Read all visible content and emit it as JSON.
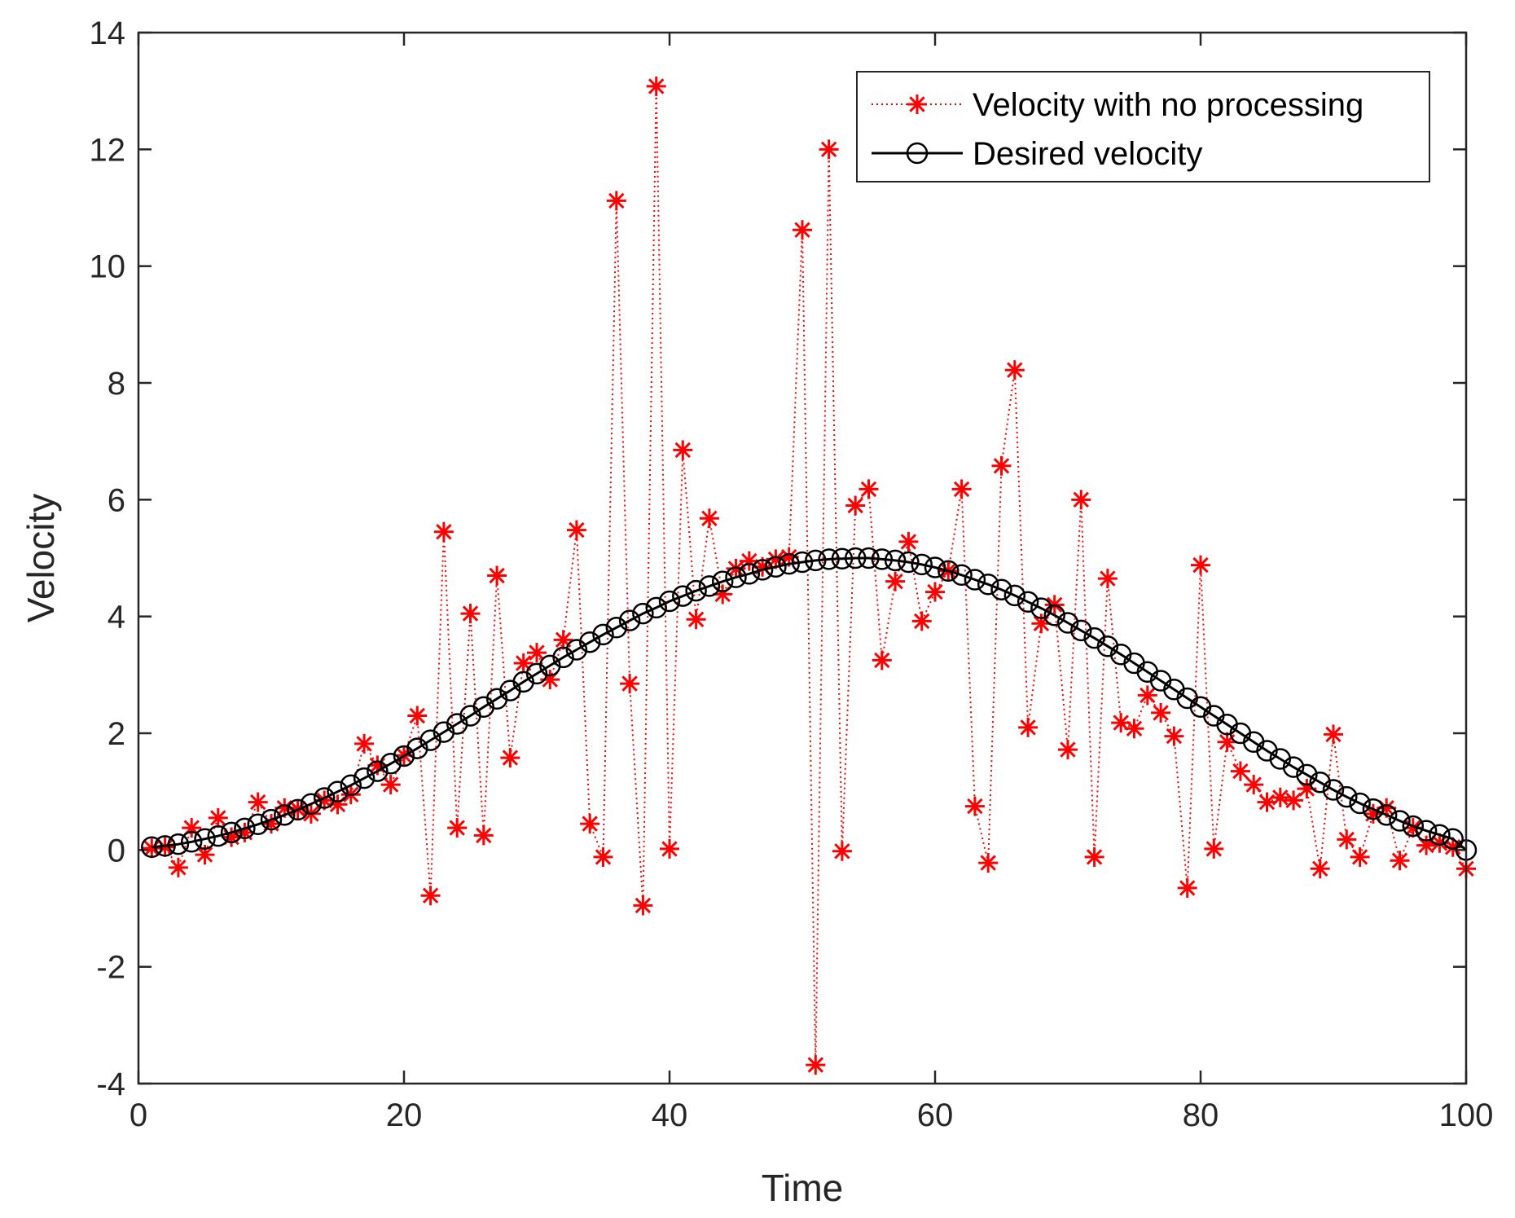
{
  "chart_data": {
    "type": "line",
    "xlabel": "Time",
    "ylabel": "Velocity",
    "xlim": [
      0,
      100
    ],
    "ylim": [
      -4,
      14
    ],
    "xticks": [
      0,
      20,
      40,
      60,
      80,
      100
    ],
    "yticks": [
      -4,
      -2,
      0,
      2,
      4,
      6,
      8,
      10,
      12,
      14
    ],
    "legend_position": "top-right",
    "grid": false,
    "series": [
      {
        "name": "Velocity with no processing",
        "color": "#ff0000",
        "line_style": "dotted",
        "marker": "asterisk",
        "x": [
          1,
          2,
          3,
          4,
          5,
          6,
          7,
          8,
          9,
          10,
          11,
          12,
          13,
          14,
          15,
          16,
          17,
          18,
          19,
          20,
          21,
          22,
          23,
          24,
          25,
          26,
          27,
          28,
          29,
          30,
          31,
          32,
          33,
          34,
          35,
          36,
          37,
          38,
          39,
          40,
          41,
          42,
          43,
          44,
          45,
          46,
          47,
          48,
          49,
          50,
          51,
          52,
          53,
          54,
          55,
          56,
          57,
          58,
          59,
          60,
          61,
          62,
          63,
          64,
          65,
          66,
          67,
          68,
          69,
          70,
          71,
          72,
          73,
          74,
          75,
          76,
          77,
          78,
          79,
          80,
          81,
          82,
          83,
          84,
          85,
          86,
          87,
          88,
          89,
          90,
          91,
          92,
          93,
          94,
          95,
          96,
          97,
          98,
          99,
          100
        ],
        "values": [
          0.03,
          0.05,
          -0.3,
          0.38,
          -0.08,
          0.55,
          0.22,
          0.3,
          0.82,
          0.45,
          0.72,
          0.7,
          0.62,
          0.85,
          0.78,
          0.95,
          1.82,
          1.45,
          1.12,
          1.62,
          2.3,
          -0.78,
          5.45,
          0.38,
          4.05,
          0.25,
          4.7,
          1.58,
          3.2,
          3.38,
          2.92,
          3.6,
          5.48,
          0.45,
          -0.12,
          11.12,
          2.85,
          -0.95,
          13.08,
          0.02,
          6.85,
          3.95,
          5.68,
          4.38,
          4.82,
          4.95,
          4.85,
          4.98,
          5.02,
          10.62,
          -3.68,
          12.0,
          -0.02,
          5.9,
          6.18,
          3.25,
          4.6,
          5.28,
          3.92,
          4.42,
          4.78,
          6.18,
          0.75,
          -0.22,
          6.58,
          8.22,
          2.1,
          3.88,
          4.2,
          1.72,
          6.0,
          -0.12,
          4.65,
          2.18,
          2.08,
          2.65,
          2.35,
          1.95,
          -0.65,
          4.88,
          0.02,
          1.85,
          1.35,
          1.12,
          0.82,
          0.9,
          0.85,
          1.05,
          -0.32,
          1.98,
          0.18,
          -0.12,
          0.62,
          0.72,
          -0.18,
          0.38,
          0.08,
          0.12,
          0.05,
          -0.32
        ]
      },
      {
        "name": "Desired velocity",
        "color": "#000000",
        "line_style": "solid",
        "marker": "circle",
        "x": [
          1,
          2,
          3,
          4,
          5,
          6,
          7,
          8,
          9,
          10,
          11,
          12,
          13,
          14,
          15,
          16,
          17,
          18,
          19,
          20,
          21,
          22,
          23,
          24,
          25,
          26,
          27,
          28,
          29,
          30,
          31,
          32,
          33,
          34,
          35,
          36,
          37,
          38,
          39,
          40,
          41,
          42,
          43,
          44,
          45,
          46,
          47,
          48,
          49,
          50,
          51,
          52,
          53,
          54,
          55,
          56,
          57,
          58,
          59,
          60,
          61,
          62,
          63,
          64,
          65,
          66,
          67,
          68,
          69,
          70,
          71,
          72,
          73,
          74,
          75,
          76,
          77,
          78,
          79,
          80,
          81,
          82,
          83,
          84,
          85,
          86,
          87,
          88,
          89,
          90,
          91,
          92,
          93,
          94,
          95,
          96,
          97,
          98,
          99,
          100
        ],
        "values": [
          0.05,
          0.07,
          0.1,
          0.14,
          0.19,
          0.24,
          0.3,
          0.37,
          0.44,
          0.52,
          0.6,
          0.69,
          0.79,
          0.89,
          1.0,
          1.11,
          1.23,
          1.35,
          1.48,
          1.61,
          1.74,
          1.88,
          2.02,
          2.16,
          2.3,
          2.45,
          2.59,
          2.73,
          2.88,
          3.02,
          3.16,
          3.3,
          3.43,
          3.56,
          3.69,
          3.81,
          3.93,
          4.05,
          4.15,
          4.26,
          4.35,
          4.44,
          4.52,
          4.6,
          4.67,
          4.73,
          4.8,
          4.85,
          4.9,
          4.93,
          4.96,
          4.98,
          4.99,
          5.0,
          5.0,
          4.98,
          4.96,
          4.93,
          4.89,
          4.84,
          4.78,
          4.71,
          4.63,
          4.55,
          4.46,
          4.36,
          4.25,
          4.14,
          4.02,
          3.89,
          3.76,
          3.63,
          3.49,
          3.35,
          3.2,
          3.05,
          2.9,
          2.75,
          2.6,
          2.45,
          2.3,
          2.15,
          2.0,
          1.85,
          1.7,
          1.56,
          1.42,
          1.29,
          1.16,
          1.03,
          0.91,
          0.8,
          0.7,
          0.6,
          0.5,
          0.41,
          0.33,
          0.26,
          0.19,
          0.0
        ]
      }
    ]
  }
}
